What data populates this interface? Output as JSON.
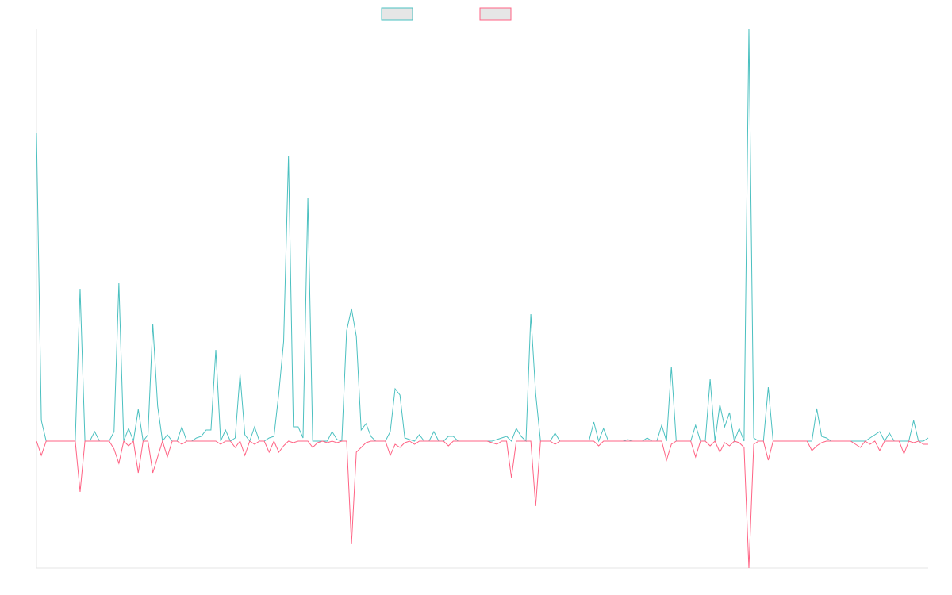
{
  "chart_data": {
    "type": "line",
    "ylim": [
      -160,
      520
    ],
    "grid": false,
    "legend": "top",
    "series": [
      {
        "color": "#4bc0c0",
        "values": [
          388,
          26,
          0,
          0,
          0,
          0,
          0,
          0,
          0,
          192,
          0,
          0,
          12,
          0,
          0,
          0,
          12,
          199,
          0,
          16,
          0,
          40,
          0,
          8,
          148,
          44,
          0,
          8,
          0,
          0,
          18,
          0,
          0,
          4,
          6,
          14,
          14,
          115,
          0,
          14,
          0,
          4,
          84,
          8,
          0,
          18,
          0,
          0,
          4,
          6,
          60,
          126,
          359,
          18,
          18,
          4,
          307,
          0,
          0,
          0,
          0,
          12,
          2,
          0,
          139,
          167,
          132,
          14,
          22,
          6,
          0,
          0,
          0,
          12,
          66,
          58,
          4,
          2,
          0,
          8,
          0,
          0,
          12,
          0,
          0,
          6,
          6,
          0,
          0,
          0,
          0,
          0,
          0,
          0,
          0,
          2,
          4,
          6,
          0,
          16,
          6,
          0,
          160,
          60,
          0,
          0,
          0,
          10,
          0,
          0,
          0,
          0,
          0,
          0,
          0,
          24,
          0,
          16,
          0,
          0,
          0,
          0,
          2,
          0,
          0,
          0,
          4,
          0,
          0,
          20,
          0,
          94,
          0,
          0,
          0,
          0,
          20,
          0,
          0,
          78,
          0,
          46,
          18,
          36,
          0,
          16,
          0,
          520,
          4,
          0,
          0,
          68,
          0,
          0,
          0,
          0,
          0,
          0,
          0,
          0,
          0,
          41,
          6,
          4,
          0,
          0,
          0,
          0,
          0,
          0,
          0,
          0,
          4,
          8,
          12,
          0,
          10,
          0,
          0,
          0,
          0,
          26,
          0,
          0,
          4
        ]
      },
      {
        "color": "#ff6384",
        "values": [
          0,
          -18,
          0,
          0,
          0,
          0,
          0,
          0,
          0,
          -64,
          0,
          0,
          0,
          0,
          0,
          0,
          -10,
          -28,
          0,
          -6,
          0,
          -40,
          0,
          0,
          -40,
          -20,
          0,
          -20,
          0,
          0,
          -4,
          0,
          0,
          0,
          0,
          0,
          0,
          0,
          -4,
          0,
          0,
          -8,
          0,
          -18,
          0,
          -4,
          0,
          0,
          -14,
          0,
          -14,
          -6,
          0,
          -2,
          0,
          0,
          0,
          -8,
          -2,
          0,
          -2,
          0,
          -2,
          0,
          0,
          -130,
          -14,
          -8,
          -2,
          0,
          0,
          0,
          0,
          -18,
          -4,
          -8,
          -2,
          0,
          -4,
          0,
          0,
          0,
          0,
          0,
          0,
          -6,
          0,
          0,
          0,
          0,
          0,
          0,
          0,
          0,
          -2,
          -4,
          0,
          0,
          -46,
          0,
          0,
          0,
          0,
          -82,
          0,
          0,
          0,
          -4,
          0,
          0,
          0,
          0,
          0,
          0,
          0,
          0,
          -6,
          0,
          0,
          0,
          0,
          0,
          0,
          0,
          0,
          0,
          0,
          0,
          0,
          0,
          -24,
          -4,
          0,
          0,
          0,
          0,
          -20,
          0,
          0,
          -6,
          0,
          -14,
          -2,
          -6,
          0,
          -2,
          -8,
          -160,
          -4,
          0,
          0,
          -24,
          0,
          0,
          0,
          0,
          0,
          0,
          0,
          0,
          -12,
          -6,
          -2,
          0,
          0,
          0,
          0,
          0,
          0,
          -4,
          -8,
          0,
          -4,
          0,
          -12,
          0,
          0,
          0,
          0,
          -16,
          0,
          -2,
          0,
          -4,
          -4
        ]
      }
    ]
  }
}
